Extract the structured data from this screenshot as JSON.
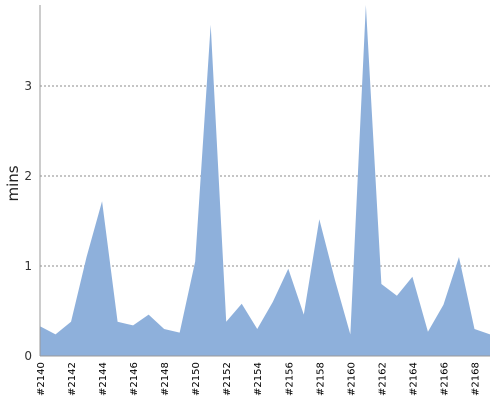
{
  "chart_data": {
    "type": "area",
    "ylabel": "mins",
    "xlabel": "",
    "ylim": [
      0,
      3.9
    ],
    "yticks": [
      0,
      1,
      2,
      3
    ],
    "grid": true,
    "fill_color": "#8eb0db",
    "tick_labels": [
      "#2140",
      "#2142",
      "#2144",
      "#2146",
      "#2148",
      "#2150",
      "#2152",
      "#2154",
      "#2156",
      "#2158",
      "#2160",
      "#2162",
      "#2164",
      "#2166",
      "#2168"
    ],
    "x": [
      "#2140",
      "#2141",
      "#2142",
      "#2143",
      "#2144",
      "#2145",
      "#2146",
      "#2147",
      "#2148",
      "#2149",
      "#2150",
      "#2151",
      "#2152",
      "#2153",
      "#2154",
      "#2155",
      "#2156",
      "#2157",
      "#2158",
      "#2159",
      "#2160",
      "#2161",
      "#2162",
      "#2163",
      "#2164",
      "#2165",
      "#2166",
      "#2167",
      "#2168",
      "#2169"
    ],
    "values": [
      0.33,
      0.24,
      0.38,
      1.1,
      1.72,
      0.38,
      0.34,
      0.46,
      0.3,
      0.26,
      1.05,
      3.68,
      0.38,
      0.58,
      0.3,
      0.6,
      0.97,
      0.46,
      1.52,
      0.85,
      0.24,
      3.9,
      0.8,
      0.67,
      0.88,
      0.27,
      0.57,
      1.1,
      0.3,
      0.24
    ]
  }
}
